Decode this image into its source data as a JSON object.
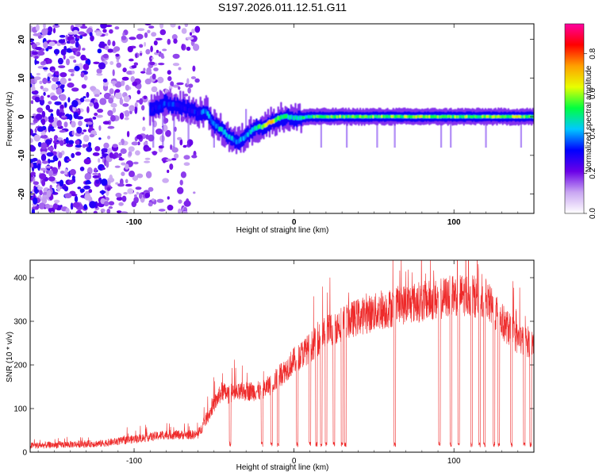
{
  "figure_title": "S197.2026.011.12.51.G11",
  "chart_data": [
    {
      "type": "heatmap",
      "xlabel": "Height of straight line (km)",
      "ylabel": "Frequency (Hz)",
      "xlim": [
        -165,
        150
      ],
      "ylim": [
        -25,
        24
      ],
      "xticks": [
        -100,
        0,
        100
      ],
      "xtick_labels": [
        "-100",
        "0",
        "100"
      ],
      "yticks": [
        -20,
        -10,
        0,
        10,
        20
      ],
      "ytick_labels": [
        "-20",
        "-10",
        "0",
        "10",
        "20"
      ],
      "colorbar": {
        "label": "Normalized spectral amplitude",
        "range": [
          0,
          0.95
        ],
        "ticks": [
          0,
          0.2,
          0.4,
          0.6,
          0.8
        ],
        "tick_labels": [
          "0.0",
          "0.2",
          "0.4",
          "0.6",
          "0.8"
        ],
        "colors": [
          "#ffffff",
          "#c9a6f2",
          "#6a00e8",
          "#0000ff",
          "#00c8ff",
          "#00ff40",
          "#e8ff00",
          "#ffa000",
          "#ff0000",
          "#ff00a0"
        ]
      },
      "ridge": {
        "x": [
          -90,
          -80,
          -70,
          -60,
          -55,
          -50,
          -45,
          -40,
          -35,
          -30,
          -25,
          -20,
          -15,
          -10,
          -5,
          0,
          10,
          20,
          40,
          60,
          80,
          100,
          120,
          140,
          150
        ],
        "frequency": [
          1.5,
          3.5,
          2.5,
          1.0,
          1.5,
          -2,
          -3.5,
          -5.5,
          -6.5,
          -5,
          -3,
          -2.5,
          -1.5,
          -0.5,
          0,
          -0.5,
          0,
          0,
          0,
          0,
          0,
          0,
          0,
          0,
          0
        ],
        "amplitude": [
          0.3,
          0.35,
          0.3,
          0.3,
          0.4,
          0.4,
          0.45,
          0.4,
          0.4,
          0.4,
          0.45,
          0.55,
          0.8,
          0.5,
          0.5,
          0.45,
          0.5,
          0.55,
          0.55,
          0.55,
          0.6,
          0.55,
          0.55,
          0.6,
          0.5
        ]
      },
      "noise_extent_x": [
        -165,
        -60
      ]
    },
    {
      "type": "line",
      "xlabel": "Height of straight line (km)",
      "ylabel": "SNR (10 * v/v)",
      "xlim": [
        -165,
        150
      ],
      "ylim": [
        0,
        440
      ],
      "xticks": [
        -100,
        0,
        100
      ],
      "xtick_labels": [
        "-100",
        "0",
        "100"
      ],
      "yticks": [
        0,
        100,
        200,
        300,
        400
      ],
      "ytick_labels": [
        "0",
        "100",
        "200",
        "300",
        "400"
      ],
      "color": "#ee2a2a",
      "baseline": {
        "x": [
          -165,
          -120,
          -100,
          -80,
          -60,
          -50,
          -45,
          -40,
          -30,
          -20,
          -10,
          0,
          10,
          20,
          30,
          40,
          50,
          60,
          70,
          80,
          90,
          100,
          110,
          120,
          130,
          140,
          150
        ],
        "y": [
          15,
          20,
          30,
          40,
          40,
          110,
          140,
          130,
          140,
          140,
          170,
          210,
          240,
          275,
          295,
          310,
          320,
          330,
          340,
          345,
          350,
          360,
          360,
          350,
          300,
          260,
          250
        ]
      },
      "dropouts_x": [
        -40,
        -20,
        -14,
        -10,
        2,
        10,
        14,
        17,
        20,
        25,
        30,
        32,
        63,
        91,
        98,
        103,
        111,
        116,
        119,
        125,
        128,
        136,
        144,
        148
      ],
      "dropout_level": 12
    }
  ]
}
